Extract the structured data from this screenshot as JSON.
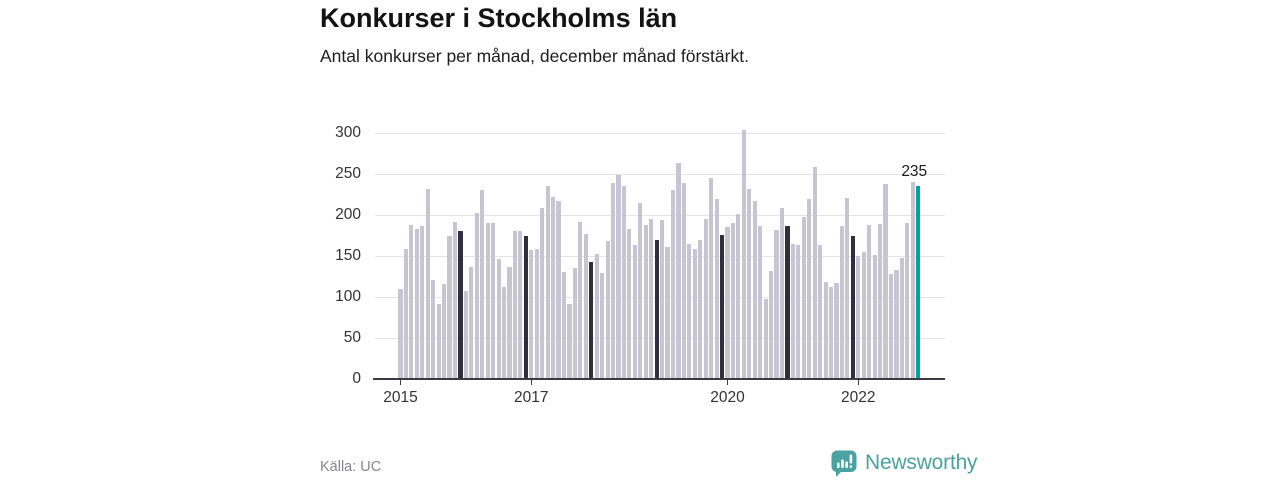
{
  "header": {
    "title": "Konkurser i Stockholms län",
    "subtitle": "Antal konkurser per månad, december månad förstärkt."
  },
  "footer": {
    "source": "Källa: UC",
    "brand": "Newsworthy"
  },
  "chart_data": {
    "type": "bar",
    "title": "Konkurser i Stockholms län",
    "subtitle": "Antal konkurser per månad, december månad förstärkt.",
    "period": "monthly",
    "start_year": 2015,
    "values": [
      110,
      158,
      188,
      183,
      186,
      232,
      121,
      92,
      116,
      175,
      192,
      180,
      107,
      137,
      202,
      230,
      190,
      190,
      146,
      112,
      137,
      180,
      180,
      174,
      157,
      159,
      209,
      235,
      222,
      217,
      130,
      92,
      135,
      191,
      177,
      143,
      153,
      129,
      168,
      239,
      249,
      235,
      183,
      163,
      215,
      188,
      195,
      170,
      194,
      161,
      231,
      264,
      239,
      165,
      158,
      169,
      195,
      245,
      219,
      176,
      185,
      190,
      201,
      304,
      232,
      217,
      187,
      98,
      132,
      182,
      208,
      186,
      165,
      163,
      197,
      220,
      259,
      163,
      118,
      112,
      117,
      186,
      221,
      174,
      150,
      155,
      188,
      151,
      189,
      238,
      128,
      133,
      147,
      190,
      240,
      235
    ],
    "ylim": [
      0,
      300
    ],
    "yticks": [
      0,
      50,
      100,
      150,
      200,
      250,
      300
    ],
    "xticks": [
      {
        "label": "2015",
        "month_index": 0
      },
      {
        "label": "2017",
        "month_index": 24
      },
      {
        "label": "2020",
        "month_index": 60
      },
      {
        "label": "2022",
        "month_index": 84
      }
    ],
    "grid": "horizontal",
    "emphasis": "december-bars-darkened",
    "highlight_last": {
      "month_index": 95,
      "label": "235"
    },
    "legend": "none",
    "colors": {
      "bar": "#c7c5d2",
      "december": "#312f3e",
      "highlight": "#00a49a",
      "baseline": "#3b3a45",
      "gridline": "#e4e3e8",
      "brand_teal": "#4aa2a1"
    }
  }
}
